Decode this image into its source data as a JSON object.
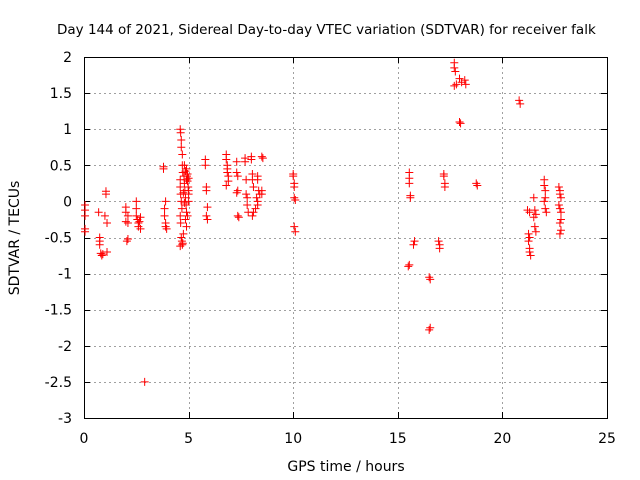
{
  "chart_data": {
    "type": "scatter",
    "title": "Day 144 of 2021, Sidereal Day-to-day VTEC variation (SDTVAR) for receiver falk",
    "xlabel": "GPS time / hours",
    "ylabel": "SDTVAR / TECUs",
    "xlim": [
      0,
      25
    ],
    "ylim": [
      -3,
      2
    ],
    "xticks": [
      0,
      5,
      10,
      15,
      20,
      25
    ],
    "yticks": [
      -3,
      -2.5,
      -2,
      -1.5,
      -1,
      -0.5,
      0,
      0.5,
      1,
      1.5,
      2
    ],
    "xtick_labels": [
      "0",
      "5",
      "10",
      "15",
      "20",
      "25"
    ],
    "ytick_labels": [
      "-3",
      "-2.5",
      "-2",
      "-1.5",
      "-1",
      "-0.5",
      "0",
      "0.5",
      "1",
      "1.5",
      "2"
    ],
    "grid": true,
    "marker": "plus",
    "color": "#ff0000",
    "series": [
      {
        "name": "SDTVAR",
        "points": [
          [
            0.05,
            -0.05
          ],
          [
            0.05,
            -0.12
          ],
          [
            0.05,
            -0.2
          ],
          [
            0.05,
            -0.38
          ],
          [
            0.05,
            -0.42
          ],
          [
            0.7,
            -0.15
          ],
          [
            0.75,
            -0.5
          ],
          [
            0.75,
            -0.55
          ],
          [
            0.75,
            -0.6
          ],
          [
            0.8,
            -0.72
          ],
          [
            0.85,
            -0.75
          ],
          [
            0.9,
            -0.73
          ],
          [
            1.0,
            -0.2
          ],
          [
            1.05,
            0.1
          ],
          [
            1.05,
            0.14
          ],
          [
            1.1,
            -0.3
          ],
          [
            1.1,
            -0.7
          ],
          [
            2.0,
            -0.08
          ],
          [
            2.0,
            -0.15
          ],
          [
            2.0,
            -0.28
          ],
          [
            2.05,
            -0.55
          ],
          [
            2.1,
            -0.2
          ],
          [
            2.1,
            -0.3
          ],
          [
            2.1,
            -0.52
          ],
          [
            2.5,
            0.0
          ],
          [
            2.5,
            -0.1
          ],
          [
            2.5,
            -0.2
          ],
          [
            2.55,
            -0.25
          ],
          [
            2.6,
            -0.3
          ],
          [
            2.6,
            -0.35
          ],
          [
            2.65,
            -0.28
          ],
          [
            2.7,
            -0.22
          ],
          [
            2.7,
            -0.38
          ],
          [
            2.9,
            -2.5
          ],
          [
            3.8,
            0.48
          ],
          [
            3.8,
            0.45
          ],
          [
            3.85,
            -0.1
          ],
          [
            3.85,
            -0.2
          ],
          [
            3.9,
            -0.3
          ],
          [
            3.9,
            -0.35
          ],
          [
            3.95,
            -0.38
          ],
          [
            3.9,
            0.0
          ],
          [
            4.6,
            1.0
          ],
          [
            4.62,
            0.95
          ],
          [
            4.65,
            0.85
          ],
          [
            4.65,
            0.75
          ],
          [
            4.7,
            0.65
          ],
          [
            4.7,
            0.5
          ],
          [
            4.72,
            0.4
          ],
          [
            4.6,
            0.3
          ],
          [
            4.6,
            0.2
          ],
          [
            4.62,
            0.1
          ],
          [
            4.65,
            0.0
          ],
          [
            4.68,
            -0.1
          ],
          [
            4.6,
            -0.2
          ],
          [
            4.62,
            -0.3
          ],
          [
            4.65,
            -0.5
          ],
          [
            4.68,
            -0.55
          ],
          [
            4.7,
            -0.6
          ],
          [
            4.6,
            -0.62
          ],
          [
            4.72,
            -0.58
          ],
          [
            4.75,
            -0.45
          ],
          [
            4.78,
            0.35
          ],
          [
            4.8,
            0.25
          ],
          [
            4.82,
            0.15
          ],
          [
            4.85,
            0.05
          ],
          [
            4.88,
            -0.05
          ],
          [
            4.9,
            -0.15
          ],
          [
            4.9,
            0.45
          ],
          [
            4.92,
            0.35
          ],
          [
            4.95,
            0.28
          ],
          [
            4.98,
            0.2
          ],
          [
            5.0,
            0.1
          ],
          [
            5.0,
            0.0
          ],
          [
            4.8,
            0.5
          ],
          [
            4.85,
            0.42
          ],
          [
            4.9,
            0.3
          ],
          [
            4.95,
            0.38
          ],
          [
            5.0,
            0.32
          ],
          [
            4.75,
            0.12
          ],
          [
            4.8,
            -0.02
          ],
          [
            4.85,
            -0.25
          ],
          [
            4.9,
            -0.35
          ],
          [
            4.95,
            -0.2
          ],
          [
            5.0,
            0.15
          ],
          [
            5.8,
            0.58
          ],
          [
            5.8,
            0.5
          ],
          [
            5.85,
            0.2
          ],
          [
            5.85,
            0.15
          ],
          [
            5.9,
            -0.08
          ],
          [
            5.85,
            -0.2
          ],
          [
            5.9,
            -0.25
          ],
          [
            6.8,
            0.65
          ],
          [
            6.8,
            0.58
          ],
          [
            6.85,
            0.5
          ],
          [
            6.85,
            0.45
          ],
          [
            6.85,
            0.4
          ],
          [
            6.9,
            0.35
          ],
          [
            6.9,
            0.28
          ],
          [
            6.8,
            0.22
          ],
          [
            7.3,
            0.55
          ],
          [
            7.3,
            0.4
          ],
          [
            7.35,
            0.35
          ],
          [
            7.35,
            0.15
          ],
          [
            7.3,
            0.12
          ],
          [
            7.4,
            -0.22
          ],
          [
            7.35,
            -0.2
          ],
          [
            7.7,
            0.6
          ],
          [
            7.7,
            0.55
          ],
          [
            7.75,
            0.3
          ],
          [
            7.75,
            0.1
          ],
          [
            7.8,
            0.05
          ],
          [
            7.8,
            -0.05
          ],
          [
            7.85,
            -0.15
          ],
          [
            8.0,
            0.62
          ],
          [
            8.0,
            0.58
          ],
          [
            8.05,
            0.38
          ],
          [
            8.05,
            0.3
          ],
          [
            8.1,
            0.2
          ],
          [
            8.1,
            -0.15
          ],
          [
            8.05,
            -0.2
          ],
          [
            8.3,
            0.35
          ],
          [
            8.3,
            0.3
          ],
          [
            8.3,
            0.0
          ],
          [
            8.3,
            -0.05
          ],
          [
            8.35,
            0.15
          ],
          [
            8.4,
            0.1
          ],
          [
            8.2,
            -0.1
          ],
          [
            8.25,
            0.05
          ],
          [
            8.5,
            0.62
          ],
          [
            8.55,
            0.6
          ],
          [
            8.5,
            0.15
          ],
          [
            8.5,
            0.1
          ],
          [
            10.0,
            0.38
          ],
          [
            10.0,
            0.35
          ],
          [
            10.05,
            0.25
          ],
          [
            10.05,
            0.2
          ],
          [
            10.05,
            0.05
          ],
          [
            10.1,
            0.02
          ],
          [
            10.05,
            -0.35
          ],
          [
            10.1,
            -0.42
          ],
          [
            15.55,
            0.4
          ],
          [
            15.55,
            0.32
          ],
          [
            15.55,
            0.25
          ],
          [
            15.6,
            0.08
          ],
          [
            15.6,
            0.05
          ],
          [
            15.5,
            -0.9
          ],
          [
            15.55,
            -0.88
          ],
          [
            15.75,
            -0.6
          ],
          [
            15.8,
            -0.55
          ],
          [
            16.5,
            -1.05
          ],
          [
            16.55,
            -1.08
          ],
          [
            16.55,
            -1.75
          ],
          [
            16.5,
            -1.78
          ],
          [
            16.95,
            -0.55
          ],
          [
            17.0,
            -0.6
          ],
          [
            17.0,
            -0.65
          ],
          [
            17.2,
            0.38
          ],
          [
            17.2,
            0.35
          ],
          [
            17.25,
            0.25
          ],
          [
            17.25,
            0.2
          ],
          [
            17.7,
            1.92
          ],
          [
            17.7,
            1.85
          ],
          [
            17.75,
            1.8
          ],
          [
            17.8,
            1.62
          ],
          [
            17.7,
            1.6
          ],
          [
            17.95,
            1.7
          ],
          [
            18.05,
            1.65
          ],
          [
            18.2,
            1.68
          ],
          [
            18.25,
            1.62
          ],
          [
            17.95,
            1.1
          ],
          [
            18.0,
            1.08
          ],
          [
            18.75,
            0.25
          ],
          [
            18.8,
            0.22
          ],
          [
            20.8,
            1.4
          ],
          [
            20.85,
            1.35
          ],
          [
            21.2,
            -0.12
          ],
          [
            21.25,
            -0.45
          ],
          [
            21.3,
            -0.5
          ],
          [
            21.25,
            -0.55
          ],
          [
            21.3,
            -0.65
          ],
          [
            21.3,
            -0.7
          ],
          [
            21.35,
            -0.75
          ],
          [
            21.3,
            -0.15
          ],
          [
            21.5,
            0.05
          ],
          [
            21.55,
            -0.12
          ],
          [
            21.6,
            -0.18
          ],
          [
            21.5,
            -0.22
          ],
          [
            21.55,
            -0.35
          ],
          [
            21.6,
            -0.42
          ],
          [
            22.0,
            0.3
          ],
          [
            22.0,
            0.22
          ],
          [
            22.05,
            0.15
          ],
          [
            22.05,
            0.05
          ],
          [
            22.0,
            0.0
          ],
          [
            22.05,
            -0.1
          ],
          [
            22.1,
            -0.15
          ],
          [
            22.7,
            0.2
          ],
          [
            22.75,
            0.15
          ],
          [
            22.75,
            0.1
          ],
          [
            22.8,
            0.05
          ],
          [
            22.7,
            -0.05
          ],
          [
            22.75,
            -0.1
          ],
          [
            22.8,
            -0.15
          ],
          [
            22.8,
            -0.25
          ],
          [
            22.75,
            -0.3
          ],
          [
            22.8,
            -0.4
          ],
          [
            22.75,
            -0.45
          ]
        ]
      }
    ]
  }
}
